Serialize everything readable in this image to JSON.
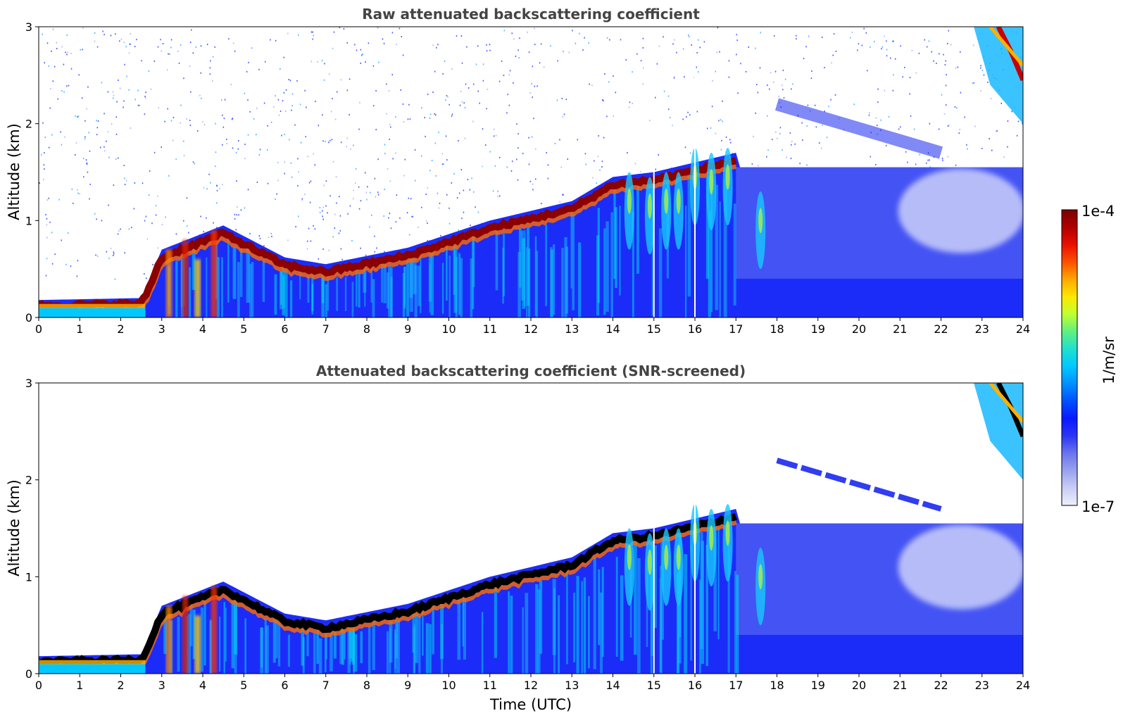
{
  "chart_data": [
    {
      "type": "heatmap",
      "title": "Raw attenuated backscattering coefficient",
      "xlabel": "",
      "ylabel": "Altitude (km)",
      "xlim": [
        0,
        24
      ],
      "ylim": [
        0,
        3
      ],
      "x_ticks": [
        "0",
        "1",
        "2",
        "3",
        "4",
        "5",
        "6",
        "7",
        "8",
        "9",
        "10",
        "11",
        "12",
        "13",
        "14",
        "15",
        "16",
        "17",
        "18",
        "19",
        "20",
        "21",
        "22",
        "23",
        "24"
      ],
      "y_ticks": [
        "0",
        "1",
        "2",
        "3"
      ],
      "features": {
        "layer_top_km": [
          {
            "t": 0,
            "z": 0.18
          },
          {
            "t": 2.5,
            "z": 0.2
          },
          {
            "t": 3.0,
            "z": 0.7
          },
          {
            "t": 4.5,
            "z": 0.95
          },
          {
            "t": 6,
            "z": 0.62
          },
          {
            "t": 7,
            "z": 0.55
          },
          {
            "t": 9,
            "z": 0.72
          },
          {
            "t": 11,
            "z": 1.0
          },
          {
            "t": 13,
            "z": 1.2
          },
          {
            "t": 14,
            "z": 1.45
          },
          {
            "t": 15,
            "z": 1.5
          },
          {
            "t": 16,
            "z": 1.6
          },
          {
            "t": 17,
            "z": 1.7
          }
        ],
        "elevated_layer_km": [
          {
            "t": 18,
            "z": 2.2
          },
          {
            "t": 20,
            "z": 1.95
          },
          {
            "t": 22,
            "z": 1.7
          }
        ],
        "high_cloud": {
          "t_start": 22.8,
          "t_end": 24,
          "z_top": 3,
          "z_base": 2.0
        }
      }
    },
    {
      "type": "heatmap",
      "title": "Attenuated backscattering coefficient (SNR-screened)",
      "xlabel": "Time (UTC)",
      "ylabel": "Altitude (km)",
      "xlim": [
        0,
        24
      ],
      "ylim": [
        0,
        3
      ],
      "x_ticks": [
        "0",
        "1",
        "2",
        "3",
        "4",
        "5",
        "6",
        "7",
        "8",
        "9",
        "10",
        "11",
        "12",
        "13",
        "14",
        "15",
        "16",
        "17",
        "18",
        "19",
        "20",
        "21",
        "22",
        "23",
        "24"
      ],
      "y_ticks": [
        "0",
        "1",
        "2",
        "3"
      ],
      "features": {
        "layer_top_km": [
          {
            "t": 0,
            "z": 0.18
          },
          {
            "t": 2.5,
            "z": 0.2
          },
          {
            "t": 3.0,
            "z": 0.7
          },
          {
            "t": 4.5,
            "z": 0.95
          },
          {
            "t": 6,
            "z": 0.62
          },
          {
            "t": 7,
            "z": 0.55
          },
          {
            "t": 9,
            "z": 0.72
          },
          {
            "t": 11,
            "z": 1.0
          },
          {
            "t": 13,
            "z": 1.2
          },
          {
            "t": 14,
            "z": 1.45
          },
          {
            "t": 15,
            "z": 1.5
          },
          {
            "t": 16,
            "z": 1.6
          },
          {
            "t": 17,
            "z": 1.7
          }
        ],
        "elevated_layer_km": [
          {
            "t": 18,
            "z": 2.2
          },
          {
            "t": 20,
            "z": 1.95
          },
          {
            "t": 22,
            "z": 1.7
          }
        ],
        "high_cloud": {
          "t_start": 22.8,
          "t_end": 24,
          "z_top": 3,
          "z_base": 2.0
        }
      }
    }
  ],
  "colorbar": {
    "max_label": "1e-4",
    "min_label": "1e-7",
    "unit": "1/m/sr",
    "colors": [
      "#eef0fa",
      "#c9cdf4",
      "#9aa2ee",
      "#6a74ee",
      "#2b35f5",
      "#0a18ff",
      "#0050ff",
      "#0090ff",
      "#00c8ff",
      "#20e0d0",
      "#60f080",
      "#c0ff30",
      "#ffe800",
      "#ffa800",
      "#ff5000",
      "#e81000",
      "#b00000",
      "#7a0000"
    ]
  }
}
